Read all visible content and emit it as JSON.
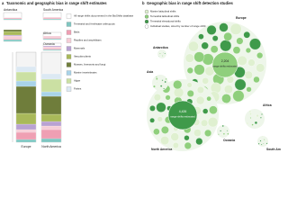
{
  "panel_a": {
    "letter": "a",
    "title": "Taxonomic and geographic bias in range shift estimates",
    "regions": [
      "Antarctica",
      "South America",
      "Asia",
      "Africa",
      "Oceania",
      "Europe",
      "North America"
    ],
    "legend": [
      "All range shifts documented in the BioShifts database",
      "Terrestrial and freshwater arthropods",
      "Birds",
      "Reptiles and amphibians",
      "Mammals",
      "Vascular plants",
      "Mosses, liverworts and fungi",
      "Marine invertebrates",
      "Algae",
      "Fishes"
    ]
  },
  "panel_b": {
    "letter": "b",
    "title": "Geographic bias in range shift detection studies",
    "legend": [
      "Marine latitudinal shifts",
      "Terrestrial latitudinal shifts",
      "Terrestrial elevational shifts",
      "Individual studies, sized by number of range shifts estimated"
    ],
    "regions": [
      "Europe",
      "Antarctica",
      "Asia",
      "North America",
      "Africa",
      "Oceania",
      "South America"
    ],
    "europe_total": "2,204",
    "europe_caption": "range shifts estimated",
    "north_america_total": "4,426",
    "north_america_caption": "range shifts estimated"
  }
}
